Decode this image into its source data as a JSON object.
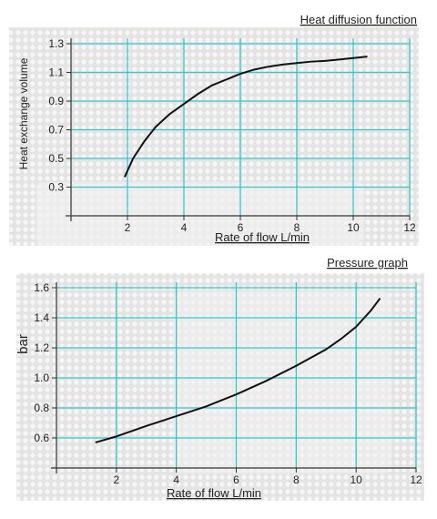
{
  "chart_data": [
    {
      "type": "line",
      "title": "Heat diffusion function",
      "x_label": "Rate of flow L/min",
      "y_label": "Heat exchange volume",
      "x": [
        1.9,
        2.2,
        2.6,
        3,
        3.5,
        4,
        4.5,
        5,
        5.5,
        6,
        6.5,
        7,
        7.5,
        8,
        8.5,
        9,
        9.5,
        10,
        10.5
      ],
      "values": [
        0.37,
        0.5,
        0.62,
        0.72,
        0.81,
        0.88,
        0.95,
        1.01,
        1.05,
        1.09,
        1.12,
        1.14,
        1.155,
        1.165,
        1.175,
        1.18,
        1.19,
        1.2,
        1.21
      ],
      "color": "#111111",
      "xlim": [
        0,
        12
      ],
      "xticks": [
        2,
        4,
        6,
        8,
        10,
        12
      ],
      "ylim": [
        0.1,
        1.3
      ],
      "yticks": [
        0.3,
        0.5,
        0.7,
        0.9,
        1.1,
        1.3
      ],
      "grid": true,
      "grid_color": "#35c6c9"
    },
    {
      "type": "line",
      "title": "Pressure graph",
      "x_label": "Rate of flow L/min",
      "y_label": "bar",
      "x": [
        1.3,
        2,
        3,
        4,
        5,
        6,
        7,
        8,
        9,
        9.5,
        10,
        10.5,
        10.8
      ],
      "values": [
        0.57,
        0.61,
        0.68,
        0.745,
        0.81,
        0.89,
        0.98,
        1.08,
        1.19,
        1.26,
        1.34,
        1.45,
        1.53
      ],
      "color": "#111111",
      "xlim": [
        0,
        12
      ],
      "xticks": [
        2,
        4,
        6,
        8,
        10,
        12
      ],
      "ylim": [
        0.4,
        1.6
      ],
      "yticks": [
        {
          "value": 0.6,
          "label": "0.6"
        },
        {
          "value": 0.8,
          "label": "0.8"
        },
        {
          "value": 1.0,
          "label": "1.0"
        },
        {
          "value": 1.2,
          "label": "1.2"
        },
        {
          "value": 1.4,
          "label": "1.4"
        },
        {
          "value": 1.6,
          "label": "1.6"
        }
      ],
      "grid": true,
      "grid_color": "#35c6c9"
    }
  ]
}
